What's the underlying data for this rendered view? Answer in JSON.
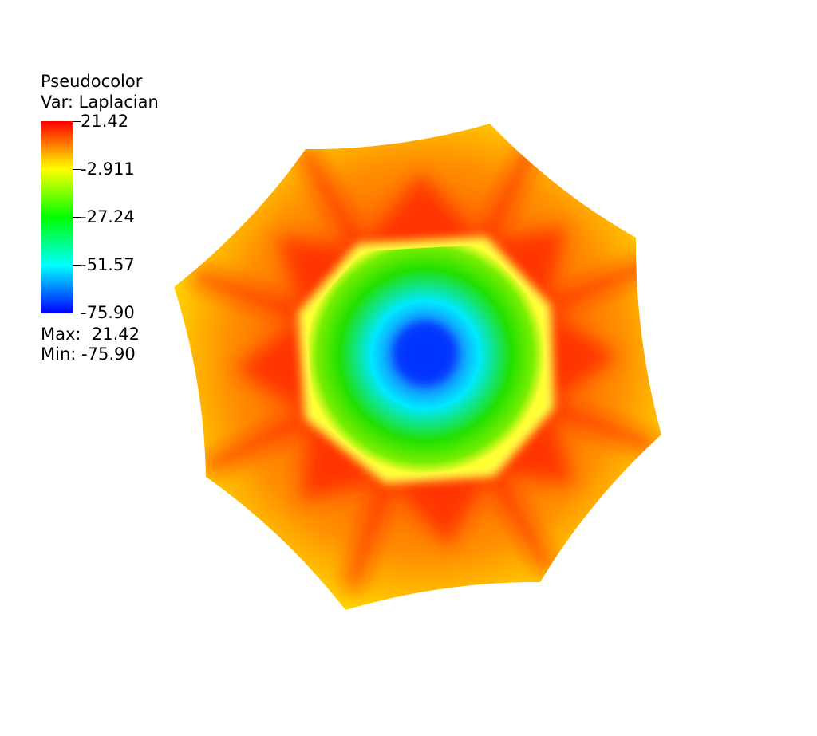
{
  "legend": {
    "title": "Pseudocolor",
    "variable": "Var: Laplacian",
    "ticks": [
      "21.42",
      "-2.911",
      "-27.24",
      "-51.57",
      "-75.90"
    ],
    "max_text": "Max:  21.42",
    "min_text": "Min: -75.90",
    "colormap": [
      "#0000ff",
      "#00ffff",
      "#00ff00",
      "#ffff00",
      "#ff0000"
    ]
  },
  "plot": {
    "colors": {
      "outer": "#ffd400",
      "ridge": "#ff3000",
      "ring": "#ffff40",
      "inner_green": "#22dd00",
      "cyan": "#00e6ff",
      "center": "#0033ff"
    }
  }
}
